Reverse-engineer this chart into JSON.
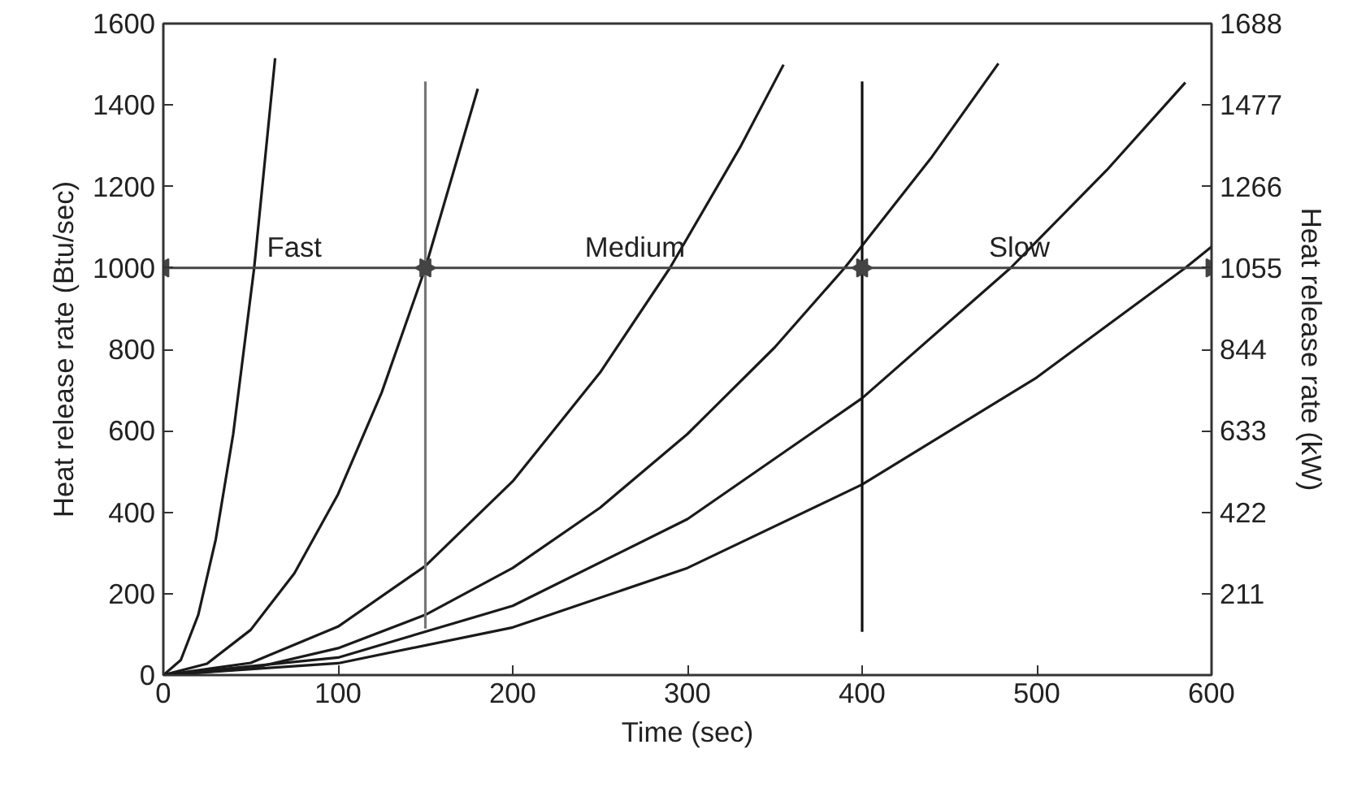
{
  "chart_data": {
    "type": "line",
    "xlabel": "Time (sec)",
    "ylabel": "Heat release rate (Btu/sec)",
    "y2label": "Heat release rate (kW)",
    "xlim": [
      0,
      600
    ],
    "xticks": [
      0,
      100,
      200,
      300,
      400,
      500,
      600
    ],
    "ylim": [
      0,
      1600
    ],
    "yticks": [
      0,
      200,
      400,
      600,
      800,
      1000,
      1200,
      1400,
      1600
    ],
    "y2lim": [
      0,
      1688
    ],
    "y2ticks": [
      211,
      422,
      633,
      844,
      1055,
      1266,
      1477,
      1688
    ],
    "grid": false,
    "line_style": "solid",
    "series": [
      {
        "color": "#1a1a1a",
        "x": [
          0,
          10,
          20,
          30,
          40,
          52,
          64
        ],
        "values": [
          0,
          37,
          148,
          333,
          592,
          1000,
          1515
        ]
      },
      {
        "color": "#1a1a1a",
        "x": [
          0,
          25,
          50,
          75,
          100,
          125,
          150,
          180
        ],
        "values": [
          0,
          28,
          111,
          250,
          444,
          694,
          1000,
          1440
        ]
      },
      {
        "color": "#1a1a1a",
        "x": [
          0,
          50,
          100,
          150,
          200,
          250,
          290,
          330,
          355
        ],
        "values": [
          0,
          30,
          119,
          268,
          476,
          743,
          1000,
          1295,
          1499
        ]
      },
      {
        "color": "#1a1a1a",
        "x": [
          0,
          50,
          100,
          150,
          200,
          250,
          300,
          350,
          390,
          440,
          478
        ],
        "values": [
          0,
          16,
          66,
          148,
          263,
          411,
          592,
          805,
          1000,
          1273,
          1502
        ]
      },
      {
        "color": "#1a1a1a",
        "x": [
          0,
          100,
          200,
          300,
          400,
          485,
          540,
          585
        ],
        "values": [
          0,
          43,
          170,
          383,
          680,
          1000,
          1240,
          1455
        ]
      },
      {
        "color": "#1a1a1a",
        "x": [
          0,
          100,
          200,
          300,
          400,
          500,
          585,
          600
        ],
        "values": [
          0,
          29,
          117,
          263,
          468,
          731,
          1000,
          1052
        ]
      },
      {
        "color": "#777777",
        "x": [
          150,
          150
        ],
        "values": [
          114,
          1458
        ]
      },
      {
        "color": "#111111",
        "x": [
          400,
          400
        ],
        "values": [
          106,
          1458
        ]
      },
      {
        "color": "#444444",
        "x": [
          0,
          150
        ],
        "values": [
          1000,
          1000
        ],
        "marker": "triangle"
      },
      {
        "color": "#444444",
        "x": [
          150,
          400
        ],
        "values": [
          1000,
          1000
        ],
        "marker": "triangle"
      },
      {
        "color": "#444444",
        "x": [
          400,
          600
        ],
        "values": [
          1000,
          1000
        ],
        "marker": "triangle"
      }
    ],
    "annotations": [
      {
        "text": "Fast",
        "x": 75,
        "y": 1000
      },
      {
        "text": "Medium",
        "x": 270,
        "y": 1000
      },
      {
        "text": "Slow",
        "x": 490,
        "y": 1000
      }
    ]
  }
}
